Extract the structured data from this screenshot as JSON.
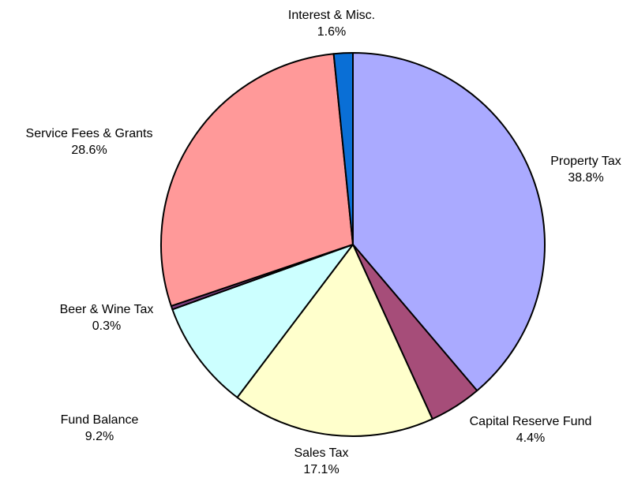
{
  "chart_data": {
    "type": "pie",
    "categories": [
      "Property Tax",
      "Capital Reserve Fund",
      "Sales Tax",
      "Fund Balance",
      "Beer & Wine Tax",
      "Service Fees & Grants",
      "Interest & Misc."
    ],
    "values": [
      38.8,
      4.4,
      17.1,
      9.2,
      0.3,
      28.6,
      1.6
    ],
    "value_labels": [
      "38.8%",
      "4.4%",
      "17.1%",
      "9.2%",
      "0.3%",
      "28.6%",
      "1.6%"
    ],
    "colors": [
      "#aaaaff",
      "#a64d79",
      "#ffffcc",
      "#ccffff",
      "#7f3f7f",
      "#ff9999",
      "#0a6fd6"
    ]
  }
}
